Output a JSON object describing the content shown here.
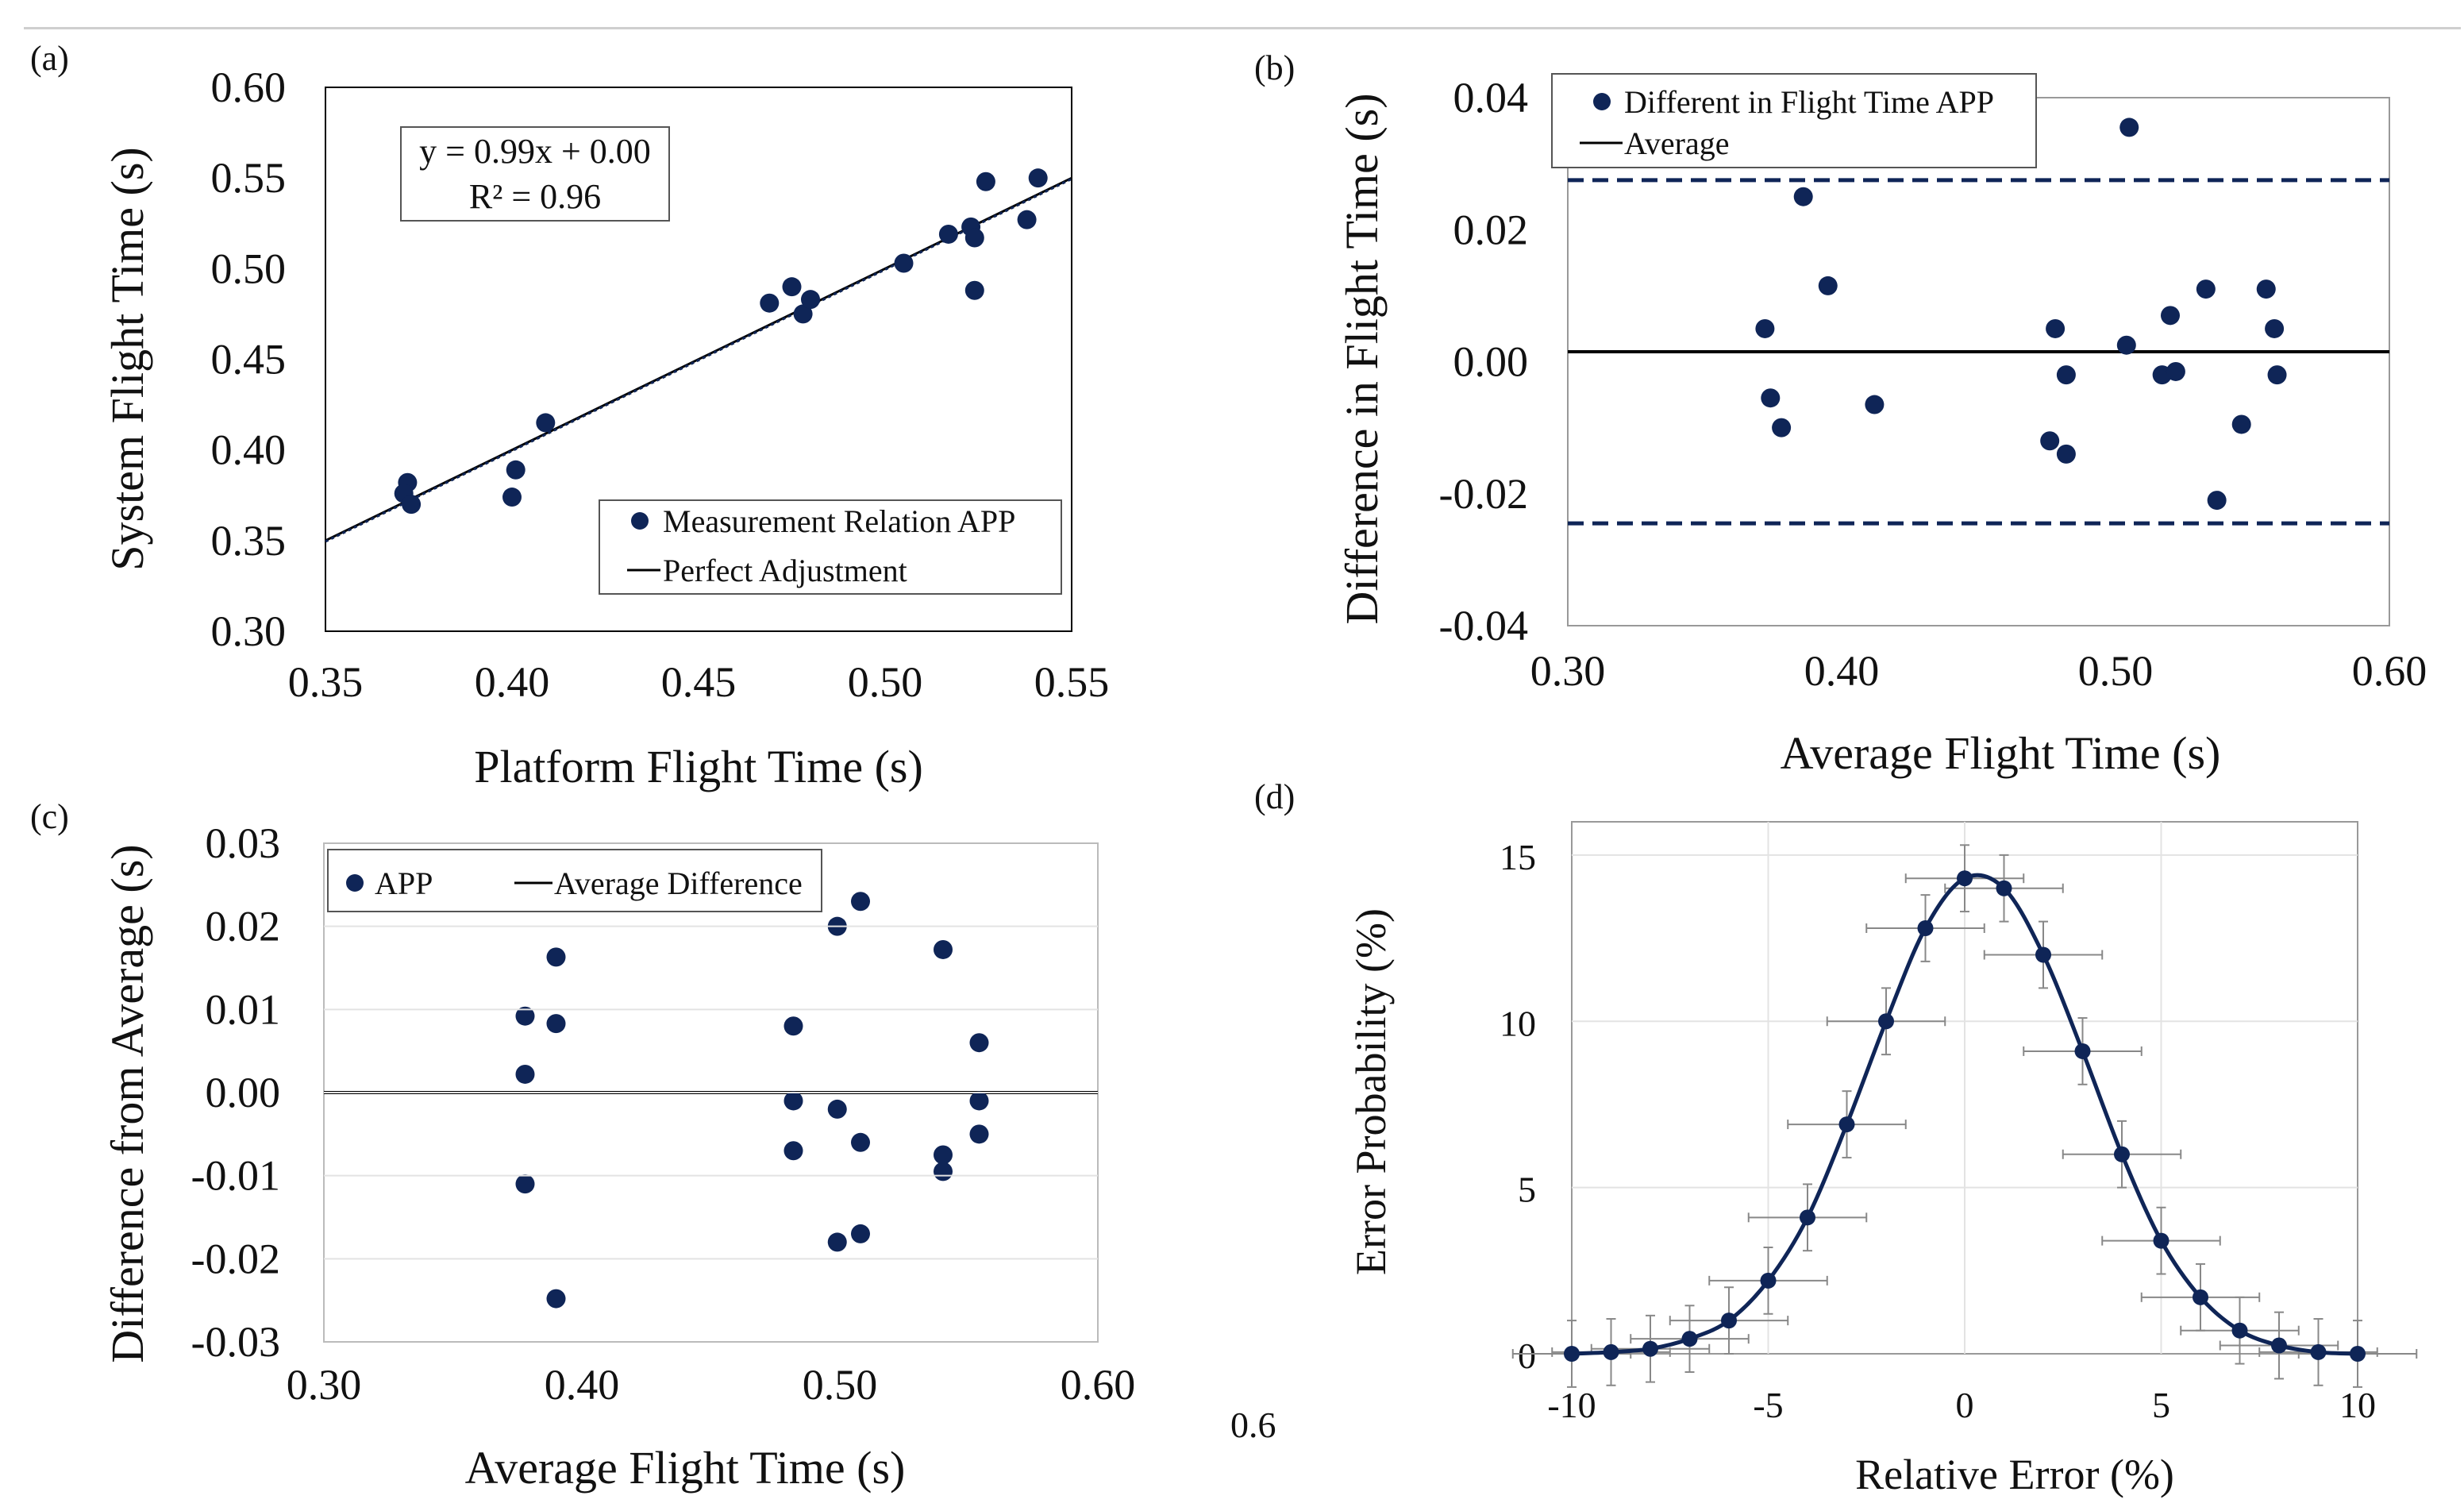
{
  "colors": {
    "marker": "#0f2557",
    "line": "#000000",
    "frame": "#000000",
    "dashed": "#0f2557"
  },
  "stray_text": "0.6",
  "chart_data": [
    {
      "panel": "(a)",
      "type": "scatter",
      "xlabel": "Platform Flight Time (s)",
      "ylabel": "System Flight Time (s)",
      "xlim": [
        0.35,
        0.55
      ],
      "ylim": [
        0.3,
        0.6
      ],
      "xticks": [
        "0.35",
        "0.40",
        "0.45",
        "0.50",
        "0.55"
      ],
      "yticks": [
        "0.30",
        "0.35",
        "0.40",
        "0.45",
        "0.50",
        "0.55",
        "0.60"
      ],
      "equation": "y = 0.99x + 0.00",
      "r2": "R² = 0.96",
      "legend": [
        "Measurement Relation APP",
        "Perfect Adjustment"
      ],
      "points": [
        [
          0.372,
          0.382
        ],
        [
          0.371,
          0.376
        ],
        [
          0.373,
          0.37
        ],
        [
          0.4,
          0.374
        ],
        [
          0.401,
          0.389
        ],
        [
          0.409,
          0.415
        ],
        [
          0.469,
          0.481
        ],
        [
          0.475,
          0.49
        ],
        [
          0.478,
          0.475
        ],
        [
          0.48,
          0.483
        ],
        [
          0.505,
          0.503
        ],
        [
          0.517,
          0.519
        ],
        [
          0.523,
          0.523
        ],
        [
          0.524,
          0.517
        ],
        [
          0.524,
          0.488
        ],
        [
          0.527,
          0.548
        ],
        [
          0.538,
          0.527
        ],
        [
          0.541,
          0.55
        ]
      ],
      "fit_line": [
        [
          0.35,
          0.3495
        ],
        [
          0.55,
          0.5495
        ]
      ],
      "perfect_line": [
        [
          0.35,
          0.35
        ],
        [
          0.55,
          0.55
        ]
      ]
    },
    {
      "panel": "(b)",
      "type": "scatter",
      "xlabel": "Average Flight Time (s)",
      "ylabel": "Difference in Flight Time (s)",
      "xlim": [
        0.3,
        0.6
      ],
      "ylim": [
        -0.04,
        0.04
      ],
      "xticks": [
        "0.30",
        "0.40",
        "0.50",
        "0.60"
      ],
      "yticks": [
        "-0.04",
        "-0.02",
        "0.00",
        "0.02",
        "0.04"
      ],
      "legend": [
        "Different in Flight Time APP",
        "Average"
      ],
      "average": 0.0015,
      "upper_limit": 0.0275,
      "lower_limit": -0.0245,
      "points": [
        [
          0.372,
          0.005
        ],
        [
          0.374,
          -0.0055
        ],
        [
          0.378,
          -0.01
        ],
        [
          0.386,
          0.025
        ],
        [
          0.395,
          0.0115
        ],
        [
          0.412,
          -0.0065
        ],
        [
          0.476,
          -0.012
        ],
        [
          0.478,
          0.005
        ],
        [
          0.482,
          -0.002
        ],
        [
          0.482,
          -0.014
        ],
        [
          0.504,
          0.0025
        ],
        [
          0.505,
          0.0355
        ],
        [
          0.517,
          -0.002
        ],
        [
          0.52,
          0.007
        ],
        [
          0.522,
          -0.0015
        ],
        [
          0.533,
          0.011
        ],
        [
          0.537,
          -0.021
        ],
        [
          0.546,
          -0.0095
        ],
        [
          0.555,
          0.011
        ],
        [
          0.558,
          0.005
        ],
        [
          0.559,
          -0.002
        ]
      ]
    },
    {
      "panel": "(c)",
      "type": "scatter",
      "xlabel": "Average Flight Time (s)",
      "ylabel": "Difference from Average (s)",
      "xlim": [
        0.3,
        0.6
      ],
      "ylim": [
        -0.03,
        0.03
      ],
      "xticks": [
        "0.30",
        "0.40",
        "0.50",
        "0.60"
      ],
      "yticks": [
        "-0.03",
        "-0.02",
        "-0.01",
        "0.00",
        "0.01",
        "0.02",
        "0.03"
      ],
      "legend": [
        "APP",
        "Average Difference"
      ],
      "average": 0.0,
      "points": [
        [
          0.378,
          0.0092
        ],
        [
          0.378,
          0.0022
        ],
        [
          0.378,
          -0.011
        ],
        [
          0.39,
          0.0163
        ],
        [
          0.39,
          0.0083
        ],
        [
          0.39,
          -0.0248
        ],
        [
          0.482,
          0.008
        ],
        [
          0.482,
          -0.001
        ],
        [
          0.482,
          -0.007
        ],
        [
          0.499,
          0.02
        ],
        [
          0.499,
          -0.002
        ],
        [
          0.499,
          -0.018
        ],
        [
          0.508,
          0.023
        ],
        [
          0.508,
          -0.006
        ],
        [
          0.508,
          -0.017
        ],
        [
          0.54,
          0.0172
        ],
        [
          0.54,
          -0.0075
        ],
        [
          0.54,
          -0.0095
        ],
        [
          0.554,
          0.006
        ],
        [
          0.554,
          -0.001
        ],
        [
          0.554,
          -0.005
        ]
      ]
    },
    {
      "panel": "(d)",
      "type": "line",
      "xlabel": "Relative Error (%)",
      "ylabel": "Error Probability (%)",
      "xlim": [
        -10,
        10
      ],
      "ylim": [
        0,
        16
      ],
      "xticks": [
        "-10",
        "-5",
        "0",
        "5",
        "10"
      ],
      "yticks": [
        "0",
        "5",
        "10",
        "15"
      ],
      "x": [
        -10,
        -9,
        -8,
        -7,
        -6,
        -5,
        -4,
        -3,
        -2,
        -1,
        0,
        1,
        2,
        3,
        4,
        5,
        6,
        7,
        8,
        9,
        10
      ],
      "values": [
        0.0,
        0.05,
        0.15,
        0.45,
        1.0,
        2.2,
        4.1,
        6.9,
        10.0,
        12.8,
        14.3,
        14.0,
        12.0,
        9.1,
        6.0,
        3.4,
        1.7,
        0.7,
        0.25,
        0.05,
        0.0
      ],
      "x_error": 1.5,
      "y_error": 1.0
    }
  ]
}
